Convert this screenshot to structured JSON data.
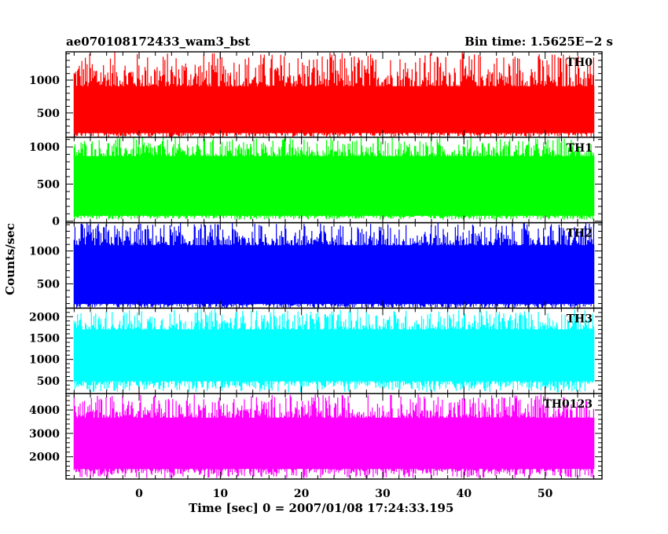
{
  "header": {
    "title": "ae070108172433_wam3_bst",
    "bin_time": "Bin time: 1.5625E−2 s"
  },
  "chart_data": {
    "type": "line",
    "xlabel": "Time [sec] 0 = 2007/01/08 17:24:33.195",
    "ylabel": "Counts/sec",
    "xlim": [
      -9,
      57
    ],
    "data_x_range": [
      -8,
      56
    ],
    "xticks": [
      0,
      10,
      20,
      30,
      40,
      50
    ],
    "grid": false,
    "panels": [
      {
        "name": "TH0",
        "color": "#ff0000",
        "ylim": [
          130,
          1430
        ],
        "yticks": [
          500,
          1000
        ],
        "band": [
          130,
          1430
        ],
        "typical_range": [
          200,
          900
        ]
      },
      {
        "name": "TH1",
        "color": "#00ff00",
        "ylim": [
          -20,
          1130
        ],
        "yticks": [
          0,
          500,
          1000
        ],
        "band": [
          20,
          1130
        ],
        "typical_range": [
          80,
          870
        ]
      },
      {
        "name": "TH2",
        "color": "#0000ff",
        "ylim": [
          130,
          1430
        ],
        "yticks": [
          500,
          1000
        ],
        "band": [
          130,
          1430
        ],
        "typical_range": [
          200,
          1080
        ]
      },
      {
        "name": "TH3",
        "color": "#00ffff",
        "ylim": [
          200,
          2200
        ],
        "yticks": [
          500,
          1000,
          1500,
          2000
        ],
        "band": [
          230,
          2180
        ],
        "typical_range": [
          500,
          1690
        ]
      },
      {
        "name": "TH0123",
        "color": "#ff00ff",
        "ylim": [
          1050,
          4700
        ],
        "yticks": [
          2000,
          3000,
          4000
        ],
        "band": [
          1090,
          4680
        ],
        "typical_range": [
          1500,
          3650
        ]
      }
    ]
  }
}
